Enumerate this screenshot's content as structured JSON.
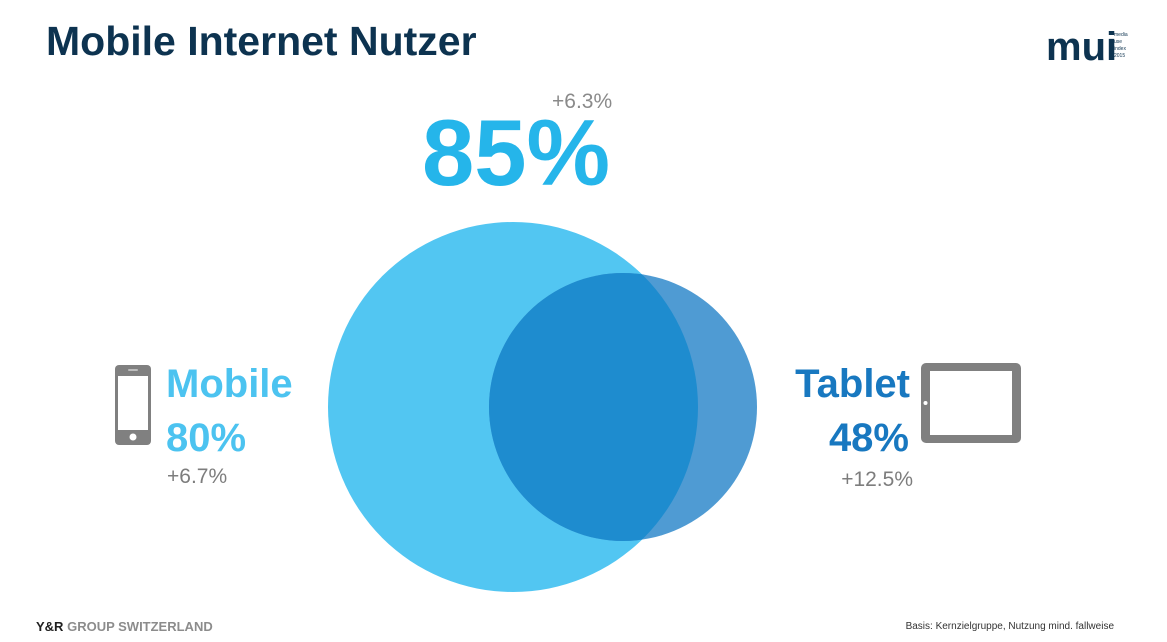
{
  "title": "Mobile Internet Nutzer",
  "logo": {
    "mark": "mui",
    "lines": [
      "media",
      "use",
      "index",
      "2015"
    ]
  },
  "total": {
    "value": "85%",
    "change": "+6.3%"
  },
  "mobile": {
    "label": "Mobile",
    "value": "80%",
    "change": "+6.7%",
    "icon": "smartphone-icon",
    "color": "#4cc3f0"
  },
  "tablet": {
    "label": "Tablet",
    "value": "48%",
    "change": "+12.5%",
    "icon": "tablet-icon",
    "color": "#1878c0"
  },
  "colors": {
    "title": "#0d3350",
    "total": "#25b5ea",
    "mobile_circle": "#52c6f2",
    "tablet_circle": "#4f9bd3",
    "overlap": "#1e8ccf",
    "icon_gray": "#808080"
  },
  "footer": {
    "brand_bold": "Y&R",
    "brand_light": "GROUP SWITZERLAND",
    "note": "Basis: Kernzielgruppe, Nutzung mind. fallweise"
  }
}
